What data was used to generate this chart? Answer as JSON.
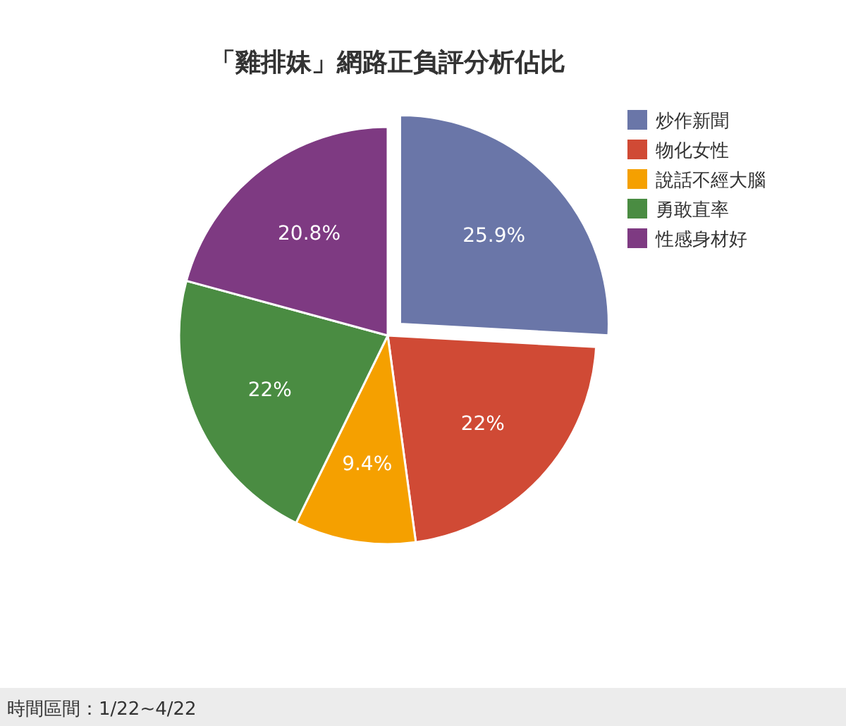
{
  "chart_data": {
    "type": "pie",
    "title": "「雞排妹」網路正負評分析佔比",
    "categories": [
      "炒作新聞",
      "物化女性",
      "說話不經大腦",
      "勇敢直率",
      "性感身材好"
    ],
    "values": [
      25.9,
      22,
      9.4,
      22,
      20.8
    ],
    "value_labels": [
      "25.9%",
      "22%",
      "9.4%",
      "22%",
      "20.8%"
    ],
    "colors": [
      "#6a76a8",
      "#d04a35",
      "#f5a000",
      "#4a8c42",
      "#7e3a82"
    ],
    "legend": "right",
    "annotations": [
      "時間區間：1/22~4/22"
    ]
  }
}
